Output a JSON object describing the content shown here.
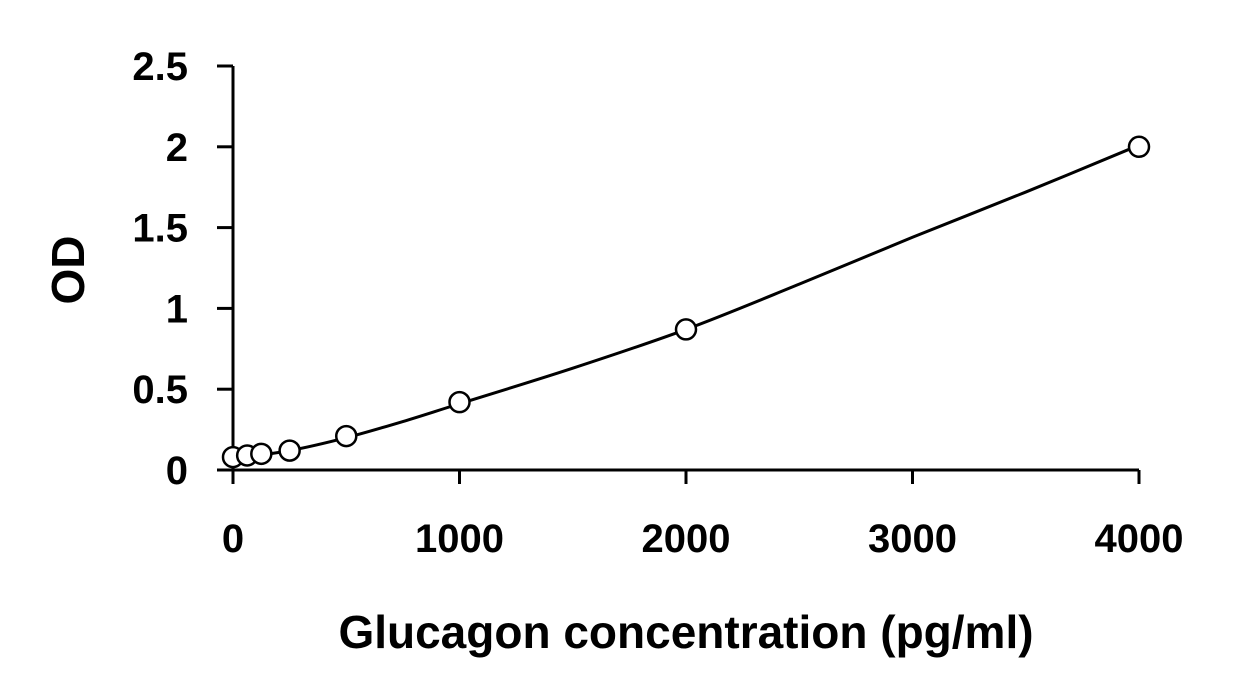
{
  "chart_data": {
    "type": "scatter",
    "title": "",
    "xlabel": "Glucagon concentration (pg/ml)",
    "ylabel": "OD",
    "xlim": [
      0,
      4000
    ],
    "ylim": [
      0,
      2.5
    ],
    "x_ticks": [
      "0",
      "1000",
      "2000",
      "3000",
      "4000"
    ],
    "y_ticks": [
      "0",
      "0.5",
      "1",
      "1.5",
      "2",
      "2.5"
    ],
    "grid": false,
    "legend": "none",
    "series": [
      {
        "marker": "open-circle",
        "x": [
          0,
          62.5,
          125,
          250,
          500,
          1000,
          2000,
          4000
        ],
        "y": [
          0.08,
          0.09,
          0.1,
          0.12,
          0.21,
          0.42,
          0.87,
          2.0
        ]
      }
    ],
    "fit_curve": {
      "style": "solid",
      "x": [
        0,
        250,
        500,
        750,
        1000,
        1500,
        2000,
        2500,
        3000,
        3500,
        4000
      ],
      "y": [
        0.07,
        0.12,
        0.2,
        0.3,
        0.41,
        0.63,
        0.87,
        1.15,
        1.44,
        1.72,
        2.01
      ]
    },
    "colors": {
      "axis": "#000000",
      "marker": "#000000",
      "curve": "#000000"
    }
  }
}
